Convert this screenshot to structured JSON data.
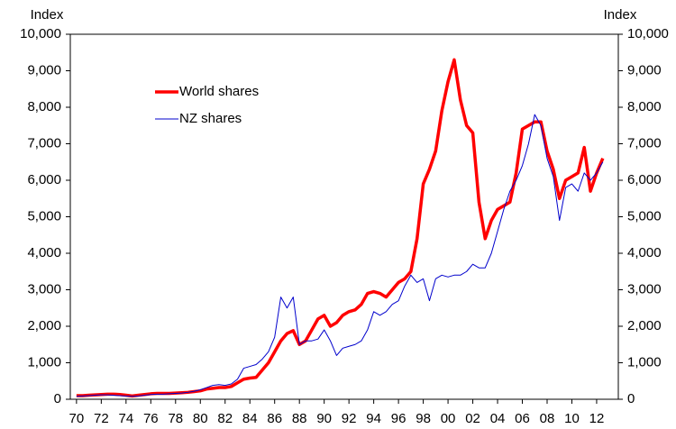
{
  "chart_data": {
    "type": "line",
    "y_label": "Index",
    "y2_label": "Index",
    "x": [
      1970,
      1970.5,
      1971,
      1971.5,
      1972,
      1972.5,
      1973,
      1973.5,
      1974,
      1974.5,
      1975,
      1975.5,
      1976,
      1976.5,
      1977,
      1977.5,
      1978,
      1978.5,
      1979,
      1979.5,
      1980,
      1980.5,
      1981,
      1981.5,
      1982,
      1982.5,
      1983,
      1983.5,
      1984,
      1984.5,
      1985,
      1985.5,
      1986,
      1986.5,
      1987,
      1987.5,
      1988,
      1988.5,
      1989,
      1989.5,
      1990,
      1990.5,
      1991,
      1991.5,
      1992,
      1992.5,
      1993,
      1993.5,
      1994,
      1994.5,
      1995,
      1995.5,
      1996,
      1996.5,
      1997,
      1997.5,
      1998,
      1998.5,
      1999,
      1999.5,
      2000,
      2000.5,
      2001,
      2001.5,
      2002,
      2002.5,
      2003,
      2003.5,
      2004,
      2004.5,
      2005,
      2005.5,
      2006,
      2006.5,
      2007,
      2007.5,
      2008,
      2008.5,
      2009,
      2009.5,
      2010,
      2010.5,
      2011,
      2011.5,
      2012,
      2012.5
    ],
    "series": [
      {
        "name": "World shares",
        "color": "#ff0000",
        "width": 3.5,
        "values": [
          100,
          100,
          110,
          120,
          130,
          140,
          140,
          130,
          110,
          90,
          110,
          130,
          150,
          160,
          160,
          160,
          170,
          180,
          190,
          210,
          230,
          280,
          300,
          320,
          320,
          350,
          450,
          550,
          580,
          600,
          800,
          1000,
          1300,
          1600,
          1800,
          1880,
          1500,
          1600,
          1900,
          2200,
          2300,
          2000,
          2100,
          2300,
          2400,
          2450,
          2600,
          2900,
          2950,
          2900,
          2800,
          3000,
          3200,
          3300,
          3500,
          4400,
          5900,
          6300,
          6800,
          7900,
          8700,
          9300,
          8200,
          7500,
          7300,
          5400,
          4400,
          4900,
          5200,
          5300,
          5400,
          6200,
          7400,
          7500,
          7600,
          7600,
          6800,
          6300,
          5500,
          6000,
          6100,
          6200,
          6900,
          5700,
          6200,
          6600
        ]
      },
      {
        "name": "NZ shares",
        "color": "#0000cc",
        "width": 1,
        "values": [
          80,
          90,
          100,
          110,
          120,
          120,
          110,
          100,
          90,
          80,
          90,
          110,
          130,
          140,
          140,
          150,
          160,
          170,
          190,
          220,
          260,
          320,
          380,
          400,
          380,
          420,
          550,
          850,
          900,
          950,
          1100,
          1300,
          1700,
          2800,
          2500,
          2800,
          1500,
          1600,
          1600,
          1650,
          1900,
          1600,
          1200,
          1400,
          1450,
          1500,
          1600,
          1900,
          2400,
          2300,
          2400,
          2600,
          2700,
          3100,
          3400,
          3200,
          3300,
          2700,
          3300,
          3400,
          3350,
          3400,
          3400,
          3500,
          3700,
          3600,
          3600,
          4000,
          4600,
          5200,
          5700,
          6000,
          6400,
          7000,
          7800,
          7500,
          6600,
          6100,
          4900,
          5800,
          5900,
          5700,
          6200,
          6000,
          6200,
          6500
        ]
      }
    ],
    "xlim": [
      1969.5,
      2013.75
    ],
    "xticks": [
      {
        "value": 1970,
        "label": "70"
      },
      {
        "value": 1972,
        "label": "72"
      },
      {
        "value": 1974,
        "label": "74"
      },
      {
        "value": 1976,
        "label": "76"
      },
      {
        "value": 1978,
        "label": "78"
      },
      {
        "value": 1980,
        "label": "80"
      },
      {
        "value": 1982,
        "label": "82"
      },
      {
        "value": 1984,
        "label": "84"
      },
      {
        "value": 1986,
        "label": "86"
      },
      {
        "value": 1988,
        "label": "88"
      },
      {
        "value": 1990,
        "label": "90"
      },
      {
        "value": 1992,
        "label": "92"
      },
      {
        "value": 1994,
        "label": "94"
      },
      {
        "value": 1996,
        "label": "96"
      },
      {
        "value": 1998,
        "label": "98"
      },
      {
        "value": 2000,
        "label": "00"
      },
      {
        "value": 2002,
        "label": "02"
      },
      {
        "value": 2004,
        "label": "04"
      },
      {
        "value": 2006,
        "label": "06"
      },
      {
        "value": 2008,
        "label": "08"
      },
      {
        "value": 2010,
        "label": "10"
      },
      {
        "value": 2012,
        "label": "12"
      }
    ],
    "ylim": [
      0,
      10000
    ],
    "yticks": [
      0,
      {
        "value": 1000,
        "label": "1,000"
      },
      {
        "value": 2000,
        "label": "2,000"
      },
      {
        "value": 3000,
        "label": "3,000"
      },
      {
        "value": 4000,
        "label": "4,000"
      },
      {
        "value": 5000,
        "label": "5,000"
      },
      {
        "value": 6000,
        "label": "6,000"
      },
      {
        "value": 7000,
        "label": "7,000"
      },
      {
        "value": 8000,
        "label": "8,000"
      },
      {
        "value": 9000,
        "label": "9,000"
      },
      {
        "value": 10000,
        "label": "10,000"
      }
    ],
    "y2lim": [
      0,
      10000
    ],
    "y2ticks": [
      0,
      {
        "value": 1000,
        "label": "1,000"
      },
      {
        "value": 2000,
        "label": "2,000"
      },
      {
        "value": 3000,
        "label": "3,000"
      },
      {
        "value": 4000,
        "label": "4,000"
      },
      {
        "value": 5000,
        "label": "5,000"
      },
      {
        "value": 6000,
        "label": "6,000"
      },
      {
        "value": 7000,
        "label": "7,000"
      },
      {
        "value": 8000,
        "label": "8,000"
      },
      {
        "value": 9000,
        "label": "9,000"
      },
      {
        "value": 10000,
        "label": "10,000"
      }
    ],
    "legend": "upper left",
    "grid": false
  }
}
